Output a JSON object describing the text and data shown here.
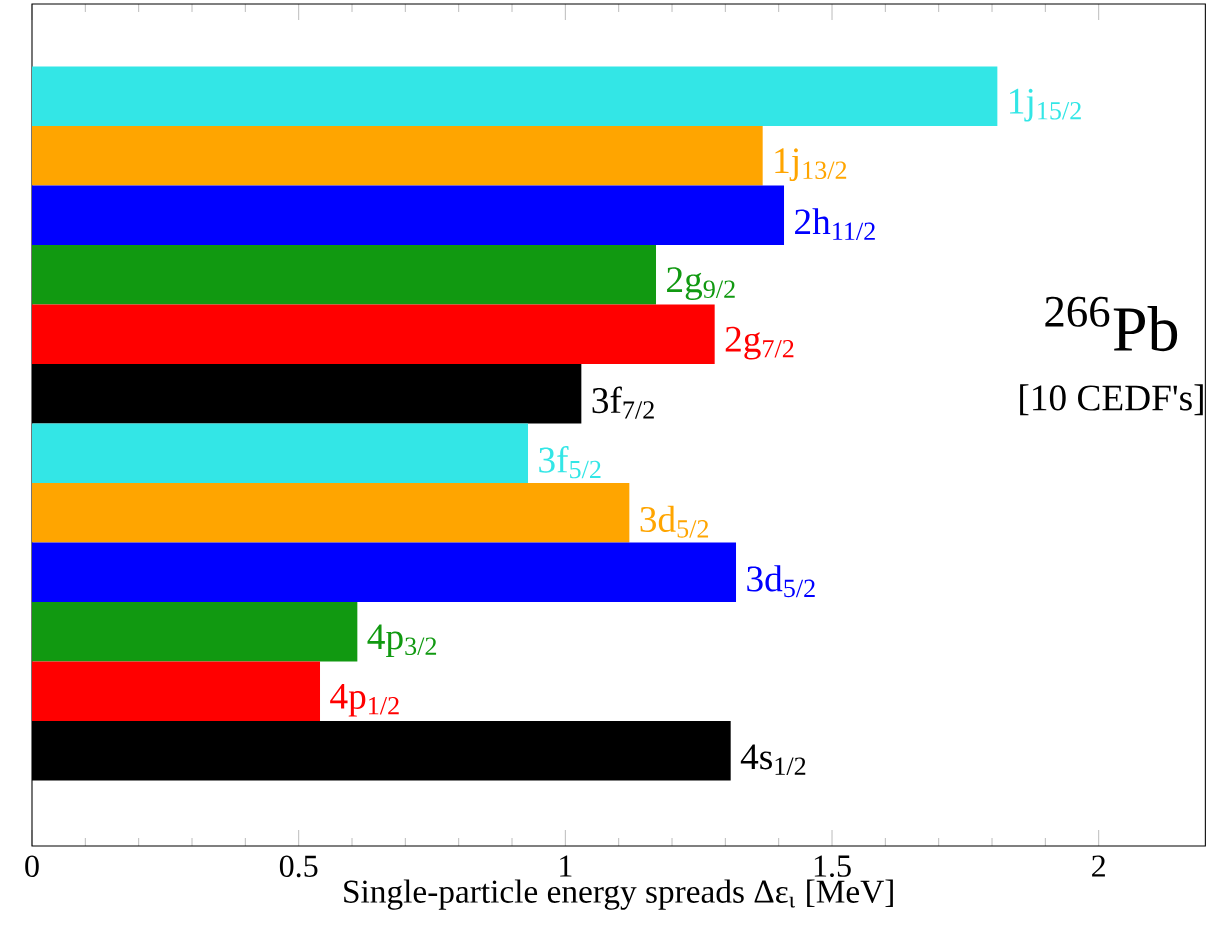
{
  "chart_data": {
    "type": "bar",
    "orientation": "horizontal",
    "categories": [
      null,
      null,
      null,
      null,
      null,
      null,
      null,
      null,
      null,
      null,
      null,
      null
    ],
    "values": [
      1.81,
      1.37,
      1.41,
      1.17,
      1.28,
      1.03,
      0.93,
      1.12,
      1.32,
      0.61,
      0.54,
      1.31
    ],
    "colors": [
      "#33e6e6",
      "#ffa500",
      "#0000ff",
      "#119911",
      "#ff0000",
      "#000000",
      "#33e6e6",
      "#ffa500",
      "#0000ff",
      "#119911",
      "#ff0000",
      "#000000"
    ],
    "xlim": [
      0,
      2.2
    ],
    "xticks": [
      0,
      0.5,
      1,
      1.5,
      2
    ],
    "xlabel": "Single-particle  energy  spreads Δε$_{ι}$  [MeV]",
    "annotations": [
      {
        "text": "1j$_{15/2}$",
        "x": 1.81
      },
      {
        "text": "1j$_{13/2}$",
        "x": 1.37
      },
      {
        "text": "2h$_{11/2}$",
        "x": 1.41
      },
      {
        "text": "2g$_{9/2}$",
        "x": 1.17
      },
      {
        "text": "2g$_{7/2}$",
        "x": 1.28
      },
      {
        "text": "3f$_{7/2}$",
        "x": 1.03
      },
      {
        "text": "3f$_{5/2}$",
        "x": 0.93
      },
      {
        "text": "3d$_{5/2}$",
        "x": 1.12
      },
      {
        "text": "3d$_{5/2}$",
        "x": 1.32
      },
      {
        "text": "4p$_{3/2}$",
        "x": 0.61
      },
      {
        "text": "4p$_{1/2}$",
        "x": 0.54
      },
      {
        "text": "4s$_{1/2}$",
        "x": 1.31
      },
      "$^{266}$Pb",
      "[10 CEDF's]"
    ],
    "tick_labels": "x",
    "grid": false
  }
}
